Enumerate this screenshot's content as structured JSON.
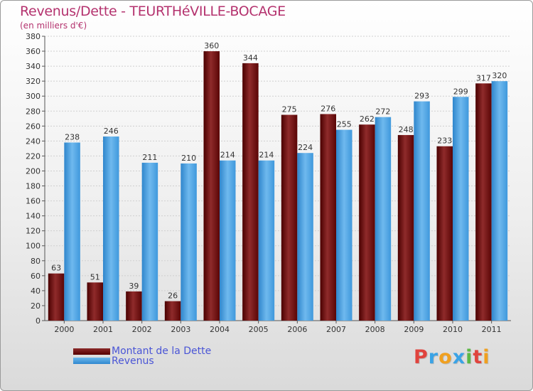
{
  "chart_data": {
    "type": "bar",
    "title": "Revenus/Dette - TEURTHéVILLE-BOCAGE",
    "subtitle": "(en milliers d'€)",
    "categories": [
      "2000",
      "2001",
      "2002",
      "2003",
      "2004",
      "2005",
      "2006",
      "2007",
      "2008",
      "2009",
      "2010",
      "2011"
    ],
    "series": [
      {
        "name": "Montant de la Dette",
        "color": "#6a0d0d",
        "values": [
          63,
          51,
          39,
          26,
          360,
          344,
          275,
          276,
          262,
          248,
          233,
          317
        ]
      },
      {
        "name": "Revenus",
        "color": "#3f9be0",
        "values": [
          238,
          246,
          211,
          210,
          214,
          214,
          224,
          255,
          272,
          293,
          299,
          320
        ]
      }
    ],
    "ylim": [
      0,
      380
    ],
    "ytick_step": 20,
    "yticks": [
      "0",
      "20",
      "40",
      "60",
      "80",
      "100",
      "120",
      "140",
      "160",
      "180",
      "200",
      "220",
      "240",
      "260",
      "280",
      "300",
      "320",
      "340",
      "360",
      "380"
    ],
    "grid": true,
    "legend_position": "bottom-left"
  },
  "logo_letters": [
    "P",
    "r",
    "o",
    "x",
    "i",
    "t",
    "i"
  ],
  "logo_colors": [
    "#e0443e",
    "#3aa3e6",
    "#f0a020",
    "#3aa3e6",
    "#5cb845",
    "#e0443e",
    "#f0a020"
  ]
}
